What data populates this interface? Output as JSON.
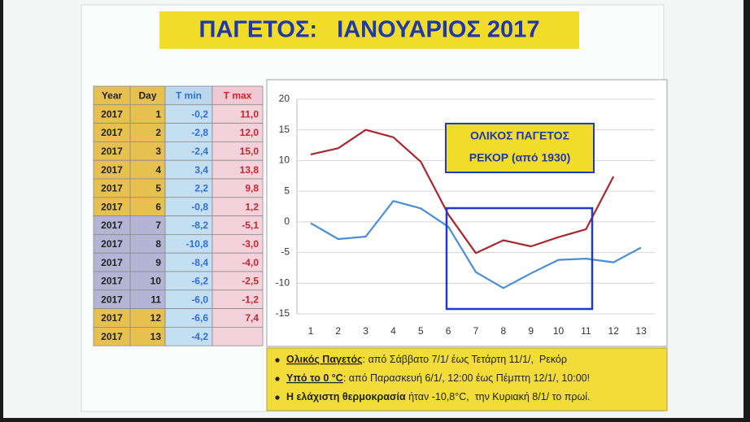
{
  "title": "ΠΑΓΕΤΟΣ:   ΙΑΝΟΥΑΡΙΟΣ 2017",
  "table": {
    "header": [
      "Year",
      "Day",
      "T min",
      "T max"
    ],
    "rows": [
      [
        "2017",
        "1",
        "-0,2",
        "11,0"
      ],
      [
        "2017",
        "2",
        "-2,8",
        "12,0"
      ],
      [
        "2017",
        "3",
        "-2,4",
        "15,0"
      ],
      [
        "2017",
        "4",
        "3,4",
        "13,8"
      ],
      [
        "2017",
        "5",
        "2,2",
        "9,8"
      ],
      [
        "2017",
        "6",
        "-0,8",
        "1,2"
      ],
      [
        "2017",
        "7",
        "-8,2",
        "-5,1"
      ],
      [
        "2017",
        "8",
        "-10,8",
        "-3,0"
      ],
      [
        "2017",
        "9",
        "-8,4",
        "-4,0"
      ],
      [
        "2017",
        "10",
        "-6,2",
        "-2,5"
      ],
      [
        "2017",
        "11",
        "-6,0",
        "-1,2"
      ],
      [
        "2017",
        "12",
        "-6,6",
        "7,4"
      ],
      [
        "2017",
        "13",
        "-4,2"
      ]
    ],
    "row_colors": [
      "#e6c150",
      "#e6c150",
      "#e6c150",
      "#e6c150",
      "#e6c150",
      "#e6c150",
      "#b4b4d4",
      "#b4b4d4",
      "#b4b4d4",
      "#b4b4d4",
      "#b4b4d4",
      "#e6c150",
      "#e6c150"
    ]
  },
  "chart_data": {
    "type": "line",
    "categories": [
      "1",
      "2",
      "3",
      "4",
      "5",
      "6",
      "7",
      "8",
      "9",
      "10",
      "11",
      "12",
      "13"
    ],
    "series": [
      {
        "color": "#4a8fd6",
        "values": [
          -0.2,
          -2.8,
          -2.4,
          3.4,
          2.2,
          -0.8,
          -8.2,
          -10.8,
          -8.4,
          -6.2,
          -6.0,
          -6.6,
          -4.2
        ]
      },
      {
        "color": "#a8282e",
        "values": [
          11.0,
          12.0,
          15.0,
          13.8,
          9.8,
          1.2,
          -5.1,
          -3.0,
          -4.0,
          -2.5,
          -1.2,
          7.4,
          null
        ]
      }
    ],
    "ylim": [
      -15,
      20
    ],
    "yticks": [
      -15,
      -10,
      -5,
      0,
      5,
      10,
      15,
      20
    ],
    "grid": true,
    "annotation": [
      "ΟΛΙΚΟΣ ΠΑΓΕΤΟΣ",
      "ΡΕΚΟΡ (από 1930)"
    ]
  },
  "notes": [
    {
      "label": "Ολικός Παγετός",
      "text": ": από Σάββατο 7/1/ έως Τετάρτη 11/1/,  Ρεκόρ"
    },
    {
      "label": "Υπό το 0 °C",
      "text": ": από Παρασκευή 6/1/, 12:00 έως Πέμπτη 12/1/, 10:00!"
    },
    {
      "label": "Η ελάχιστη θερμοκρασία",
      "text": " ήταν -10,8°C,  την Κυριακή 8/1/ το πρωί."
    }
  ]
}
